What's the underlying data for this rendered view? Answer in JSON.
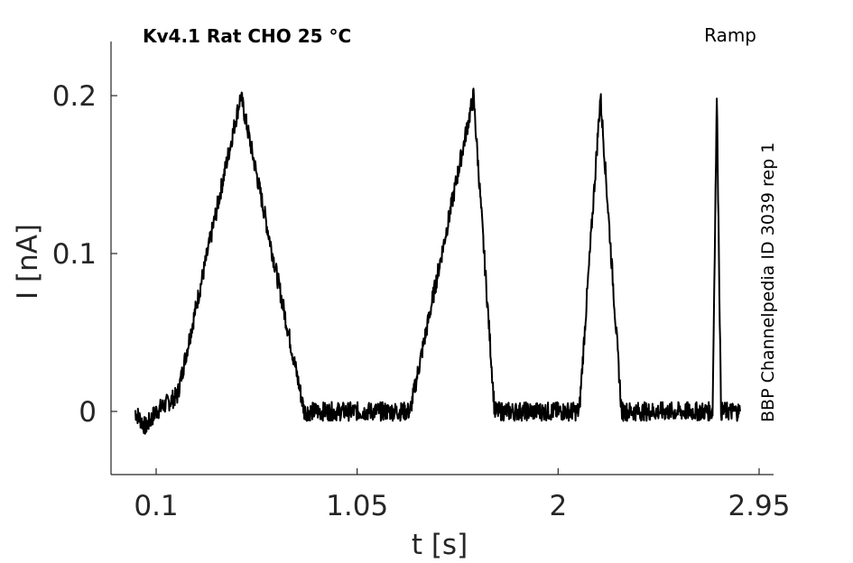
{
  "chart_data": {
    "type": "line",
    "title_left": "Kv4.1  Rat  CHO  25 °C",
    "title_right": "Ramp",
    "side_label": "BBP Channelpedia ID 3039 rep 1",
    "xlabel": "t [s]",
    "ylabel": "I [nA]",
    "xlim": [
      -0.1,
      3.0
    ],
    "ylim": [
      -0.04,
      0.235
    ],
    "xticks": [
      {
        "value": 0.1,
        "label": "0.1"
      },
      {
        "value": 1.05,
        "label": "1.05"
      },
      {
        "value": 2.0,
        "label": "2"
      },
      {
        "value": 2.95,
        "label": "2.95"
      }
    ],
    "yticks": [
      {
        "value": 0,
        "label": "0"
      },
      {
        "value": 0.1,
        "label": "0.1"
      },
      {
        "value": 0.2,
        "label": "0.2"
      }
    ],
    "grid": false,
    "series": [
      {
        "color": "#000000",
        "noise": 0.006,
        "x": [
          0.0,
          0.05,
          0.1,
          0.2,
          0.5,
          0.8,
          0.9,
          1.2,
          1.3,
          1.6,
          1.7,
          1.75,
          1.95,
          2.1,
          2.2,
          2.3,
          2.4,
          2.58,
          2.67,
          2.73,
          2.75,
          2.77,
          2.8,
          2.83,
          2.86
        ],
        "y": [
          0.0,
          -0.01,
          0.0,
          0.01,
          0.2,
          0.0,
          0.0,
          0.0,
          0.0,
          0.2,
          0.0,
          0.0,
          0.0,
          0.0,
          0.2,
          0.0,
          0.0,
          0.0,
          0.0,
          0.0,
          0.2,
          0.0,
          0.0,
          0.0,
          0.0
        ]
      }
    ]
  }
}
